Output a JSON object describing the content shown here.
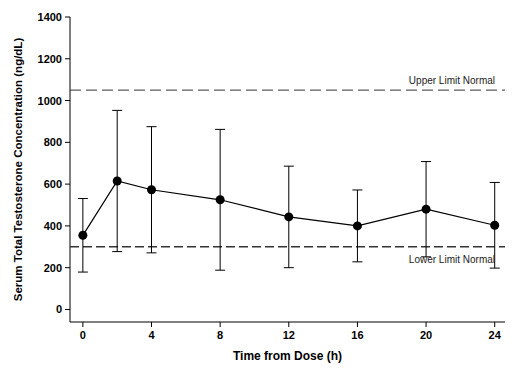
{
  "chart_data": {
    "type": "line",
    "x_label": "Time from Dose (h)",
    "y_label": "Serum Total Testosterone Concentration (ng/dL)",
    "x": [
      0,
      2,
      4,
      8,
      12,
      16,
      20,
      24
    ],
    "values": [
      355,
      615,
      573,
      525,
      443,
      400,
      480,
      403
    ],
    "errors": [
      176,
      338,
      302,
      337,
      243,
      172,
      228,
      205
    ],
    "color": "#000000",
    "marker": "circle",
    "line_style": "solid",
    "xlim": [
      -0.75,
      24.6
    ],
    "xticks": [
      0,
      4,
      8,
      12,
      16,
      20,
      24
    ],
    "ylim": [
      -60,
      1400
    ],
    "yticks": [
      0,
      200,
      400,
      600,
      800,
      1000,
      1200,
      1400
    ],
    "grid": false,
    "reference_lines": [
      {
        "value": 1050,
        "label": "Upper Limit Normal",
        "line_style": "dashed",
        "color": "#333333"
      },
      {
        "value": 300,
        "label": "Lower Limit Normal",
        "line_style": "dashed",
        "color": "#333333"
      }
    ]
  }
}
